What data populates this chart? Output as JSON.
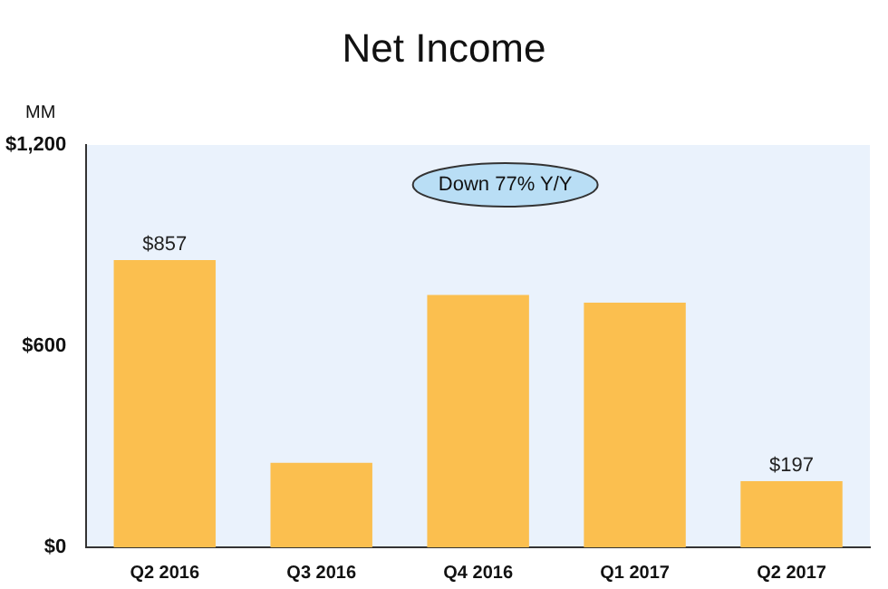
{
  "chart_data": {
    "type": "bar",
    "title": "Net Income",
    "ylabel": "MM",
    "categories": [
      "Q2 2016",
      "Q3 2016",
      "Q4 2016",
      "Q1 2017",
      "Q2 2017"
    ],
    "values": [
      857,
      252,
      753,
      730,
      197
    ],
    "value_labels": [
      "$857",
      null,
      null,
      null,
      "$197"
    ],
    "color": "#fbbf4f",
    "ylim": [
      0,
      1200
    ],
    "yticks": [
      {
        "value": 0,
        "label": "$0"
      },
      {
        "value": 600,
        "label": "$600"
      },
      {
        "value": 1200,
        "label": "$1,200"
      }
    ],
    "annotations": [
      "Down 77% Y/Y"
    ],
    "grid": false,
    "legend": false
  }
}
